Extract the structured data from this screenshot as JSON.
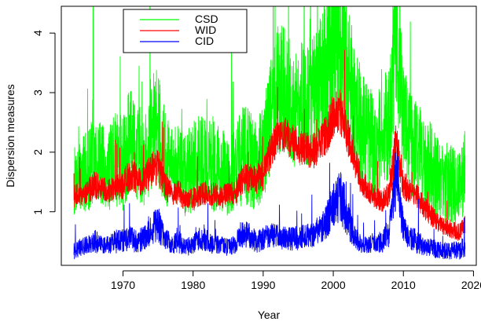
{
  "chart_data": {
    "type": "line",
    "xlabel": "Year",
    "ylabel": "Dispersion measures",
    "xlim": [
      1961.2,
      2020.4
    ],
    "ylim": [
      0.1,
      4.45
    ],
    "x_ticks": [
      1970,
      1980,
      1990,
      2000,
      2010,
      2020
    ],
    "y_ticks": [
      1,
      2,
      3,
      4
    ],
    "legend_position": "top-left",
    "series": [
      {
        "name": "CSD",
        "color": "#00ff00",
        "x": [
          1963.0,
          1964.0,
          1965.0,
          1966.0,
          1967.0,
          1968.0,
          1969.0,
          1970.0,
          1971.0,
          1972.0,
          1973.0,
          1974.0,
          1975.0,
          1976.0,
          1977.0,
          1978.0,
          1979.0,
          1980.0,
          1981.0,
          1982.0,
          1983.0,
          1984.0,
          1985.0,
          1986.0,
          1987.0,
          1988.0,
          1989.0,
          1990.0,
          1991.0,
          1992.0,
          1993.0,
          1994.0,
          1995.0,
          1996.0,
          1997.0,
          1998.0,
          1999.0,
          2000.0,
          2001.0,
          2002.0,
          2003.0,
          2004.0,
          2005.0,
          2006.0,
          2007.0,
          2008.0,
          2009.0,
          2010.0,
          2011.0,
          2012.0,
          2013.0,
          2014.0,
          2015.0,
          2016.0,
          2017.0,
          2018.0,
          2018.8
        ],
        "y": [
          1.5,
          1.6,
          1.7,
          1.9,
          1.8,
          1.7,
          1.9,
          1.8,
          2.2,
          2.0,
          1.9,
          2.3,
          2.4,
          1.9,
          1.7,
          1.8,
          1.6,
          1.8,
          1.9,
          1.8,
          1.8,
          1.7,
          1.6,
          1.7,
          2.0,
          1.9,
          1.8,
          2.0,
          2.6,
          3.0,
          3.1,
          2.8,
          2.7,
          2.9,
          2.8,
          3.0,
          3.5,
          3.8,
          3.8,
          3.4,
          2.8,
          2.4,
          2.2,
          2.1,
          2.3,
          2.5,
          4.2,
          2.4,
          2.2,
          2.0,
          1.8,
          1.7,
          1.5,
          1.5,
          1.4,
          1.4,
          1.7
        ],
        "spread": [
          0.6,
          0.6,
          0.7,
          0.8,
          0.7,
          0.7,
          0.8,
          0.8,
          0.9,
          0.8,
          0.8,
          1.0,
          1.0,
          0.8,
          0.7,
          0.7,
          0.7,
          0.8,
          0.8,
          0.8,
          0.8,
          0.7,
          0.7,
          0.7,
          0.9,
          0.8,
          0.8,
          0.8,
          1.0,
          1.1,
          1.1,
          1.0,
          1.0,
          1.1,
          1.1,
          1.2,
          1.3,
          1.5,
          1.5,
          1.3,
          1.1,
          1.0,
          0.9,
          0.9,
          0.9,
          1.0,
          1.5,
          1.0,
          0.9,
          0.9,
          0.8,
          0.8,
          0.7,
          0.7,
          0.7,
          0.6,
          0.7
        ]
      },
      {
        "name": "WID",
        "color": "#ff0000",
        "x": [
          1963.0,
          1964.0,
          1965.0,
          1966.0,
          1967.0,
          1968.0,
          1969.0,
          1970.0,
          1971.0,
          1972.0,
          1973.0,
          1974.0,
          1975.0,
          1976.0,
          1977.0,
          1978.0,
          1979.0,
          1980.0,
          1981.0,
          1982.0,
          1983.0,
          1984.0,
          1985.0,
          1986.0,
          1987.0,
          1988.0,
          1989.0,
          1990.0,
          1991.0,
          1992.0,
          1993.0,
          1994.0,
          1995.0,
          1996.0,
          1997.0,
          1998.0,
          1999.0,
          2000.0,
          2001.0,
          2002.0,
          2003.0,
          2004.0,
          2005.0,
          2006.0,
          2007.0,
          2008.0,
          2009.0,
          2010.0,
          2011.0,
          2012.0,
          2013.0,
          2014.0,
          2015.0,
          2016.0,
          2017.0,
          2018.0,
          2018.8
        ],
        "y": [
          1.25,
          1.3,
          1.35,
          1.45,
          1.4,
          1.35,
          1.45,
          1.45,
          1.6,
          1.55,
          1.5,
          1.7,
          1.75,
          1.45,
          1.3,
          1.35,
          1.15,
          1.2,
          1.3,
          1.3,
          1.3,
          1.25,
          1.3,
          1.3,
          1.55,
          1.55,
          1.55,
          1.6,
          2.0,
          2.25,
          2.3,
          2.2,
          2.1,
          2.05,
          2.0,
          2.1,
          2.3,
          2.65,
          2.7,
          2.3,
          1.9,
          1.5,
          1.35,
          1.25,
          1.2,
          1.3,
          2.2,
          1.45,
          1.35,
          1.25,
          1.05,
          0.95,
          0.8,
          0.75,
          0.7,
          0.65,
          0.75
        ],
        "spread": [
          0.2,
          0.2,
          0.2,
          0.25,
          0.2,
          0.2,
          0.25,
          0.25,
          0.3,
          0.25,
          0.25,
          0.3,
          0.3,
          0.25,
          0.2,
          0.2,
          0.2,
          0.2,
          0.2,
          0.2,
          0.2,
          0.2,
          0.2,
          0.2,
          0.25,
          0.25,
          0.25,
          0.25,
          0.3,
          0.3,
          0.3,
          0.3,
          0.3,
          0.3,
          0.3,
          0.3,
          0.35,
          0.4,
          0.4,
          0.35,
          0.3,
          0.25,
          0.2,
          0.2,
          0.2,
          0.2,
          0.4,
          0.25,
          0.2,
          0.2,
          0.2,
          0.2,
          0.15,
          0.15,
          0.15,
          0.15,
          0.2
        ]
      },
      {
        "name": "CID",
        "color": "#0000ff",
        "x": [
          1963.0,
          1964.0,
          1965.0,
          1966.0,
          1967.0,
          1968.0,
          1969.0,
          1970.0,
          1971.0,
          1972.0,
          1973.0,
          1974.0,
          1975.0,
          1976.0,
          1977.0,
          1978.0,
          1979.0,
          1980.0,
          1981.0,
          1982.0,
          1983.0,
          1984.0,
          1985.0,
          1986.0,
          1987.0,
          1988.0,
          1989.0,
          1990.0,
          1991.0,
          1992.0,
          1993.0,
          1994.0,
          1995.0,
          1996.0,
          1997.0,
          1998.0,
          1999.0,
          2000.0,
          2001.0,
          2002.0,
          2003.0,
          2004.0,
          2005.0,
          2006.0,
          2007.0,
          2008.0,
          2009.0,
          2010.0,
          2011.0,
          2012.0,
          2013.0,
          2014.0,
          2015.0,
          2016.0,
          2017.0,
          2018.0,
          2018.8
        ],
        "y": [
          0.35,
          0.4,
          0.45,
          0.5,
          0.45,
          0.45,
          0.5,
          0.5,
          0.55,
          0.5,
          0.55,
          0.7,
          0.8,
          0.55,
          0.45,
          0.5,
          0.4,
          0.45,
          0.55,
          0.5,
          0.45,
          0.45,
          0.4,
          0.45,
          0.65,
          0.6,
          0.5,
          0.55,
          0.6,
          0.6,
          0.55,
          0.55,
          0.55,
          0.6,
          0.6,
          0.7,
          0.85,
          1.1,
          1.3,
          0.9,
          0.6,
          0.45,
          0.45,
          0.45,
          0.5,
          0.65,
          1.7,
          0.7,
          0.55,
          0.5,
          0.4,
          0.4,
          0.35,
          0.35,
          0.35,
          0.35,
          0.45
        ],
        "spread": [
          0.15,
          0.15,
          0.15,
          0.2,
          0.15,
          0.15,
          0.2,
          0.2,
          0.2,
          0.2,
          0.2,
          0.25,
          0.3,
          0.2,
          0.15,
          0.2,
          0.15,
          0.15,
          0.2,
          0.2,
          0.15,
          0.15,
          0.15,
          0.15,
          0.25,
          0.2,
          0.2,
          0.2,
          0.2,
          0.2,
          0.2,
          0.2,
          0.2,
          0.2,
          0.2,
          0.25,
          0.3,
          0.4,
          0.5,
          0.35,
          0.2,
          0.15,
          0.15,
          0.15,
          0.2,
          0.25,
          0.6,
          0.25,
          0.2,
          0.2,
          0.15,
          0.15,
          0.15,
          0.15,
          0.15,
          0.15,
          0.2
        ]
      }
    ]
  }
}
